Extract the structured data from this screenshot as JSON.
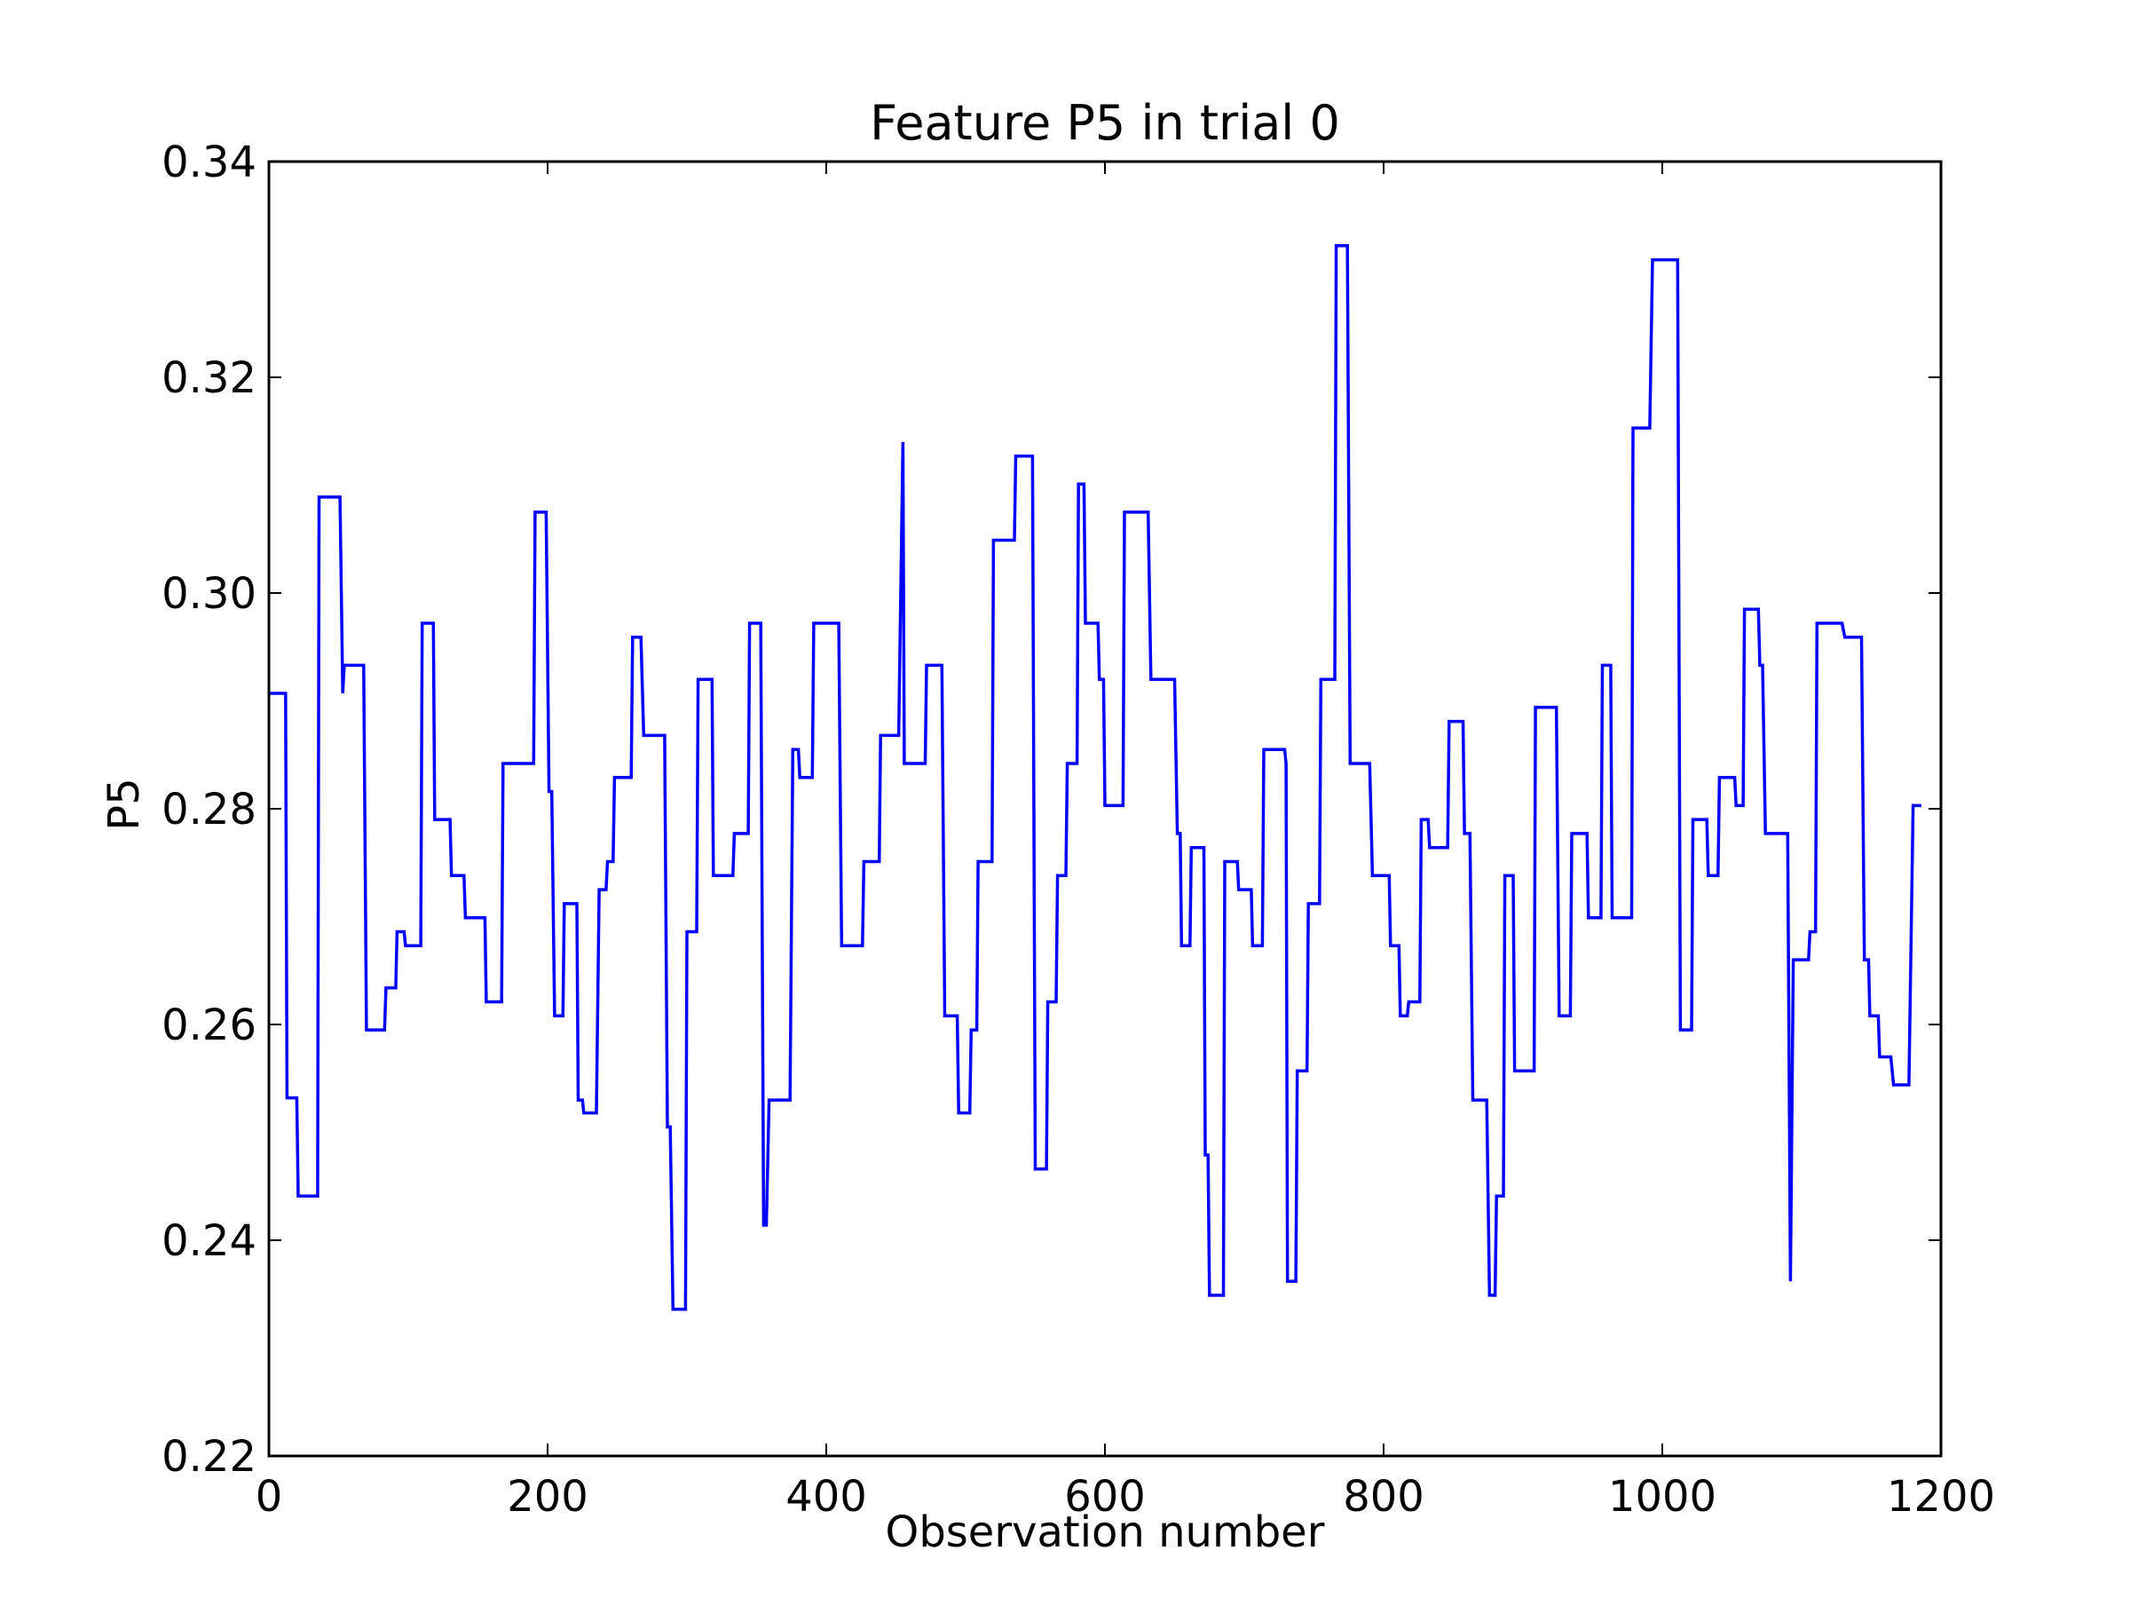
{
  "chart_data": {
    "type": "line",
    "title": "Feature P5 in trial 0",
    "xlabel": "Observation number",
    "ylabel": "P5",
    "xlim": [
      0,
      1200
    ],
    "ylim": [
      0.22,
      0.34
    ],
    "xticks": [
      0,
      200,
      400,
      600,
      800,
      1000,
      1200
    ],
    "xtick_labels": [
      "0",
      "200",
      "400",
      "600",
      "800",
      "1000",
      "1200"
    ],
    "yticks": [
      0.22,
      0.24,
      0.26,
      0.28,
      0.3,
      0.32,
      0.34
    ],
    "ytick_labels": [
      "0.22",
      "0.24",
      "0.26",
      "0.28",
      "0.30",
      "0.32",
      "0.34"
    ],
    "grid": false,
    "line_color": "#0000ff",
    "series": [
      {
        "values_step": true,
        "points": [
          [
            0,
            0.2907
          ],
          [
            12,
            0.2907
          ],
          [
            13,
            0.2532
          ],
          [
            20,
            0.2532
          ],
          [
            21,
            0.2441
          ],
          [
            35,
            0.2441
          ],
          [
            36,
            0.3089
          ],
          [
            51,
            0.3089
          ],
          [
            53,
            0.2907
          ],
          [
            54,
            0.2933
          ],
          [
            68,
            0.2933
          ],
          [
            70,
            0.2595
          ],
          [
            83,
            0.2595
          ],
          [
            84,
            0.2634
          ],
          [
            91,
            0.2634
          ],
          [
            92,
            0.2686
          ],
          [
            97,
            0.2686
          ],
          [
            98,
            0.2673
          ],
          [
            109,
            0.2673
          ],
          [
            110,
            0.2972
          ],
          [
            118,
            0.2972
          ],
          [
            119,
            0.279
          ],
          [
            130,
            0.279
          ],
          [
            131,
            0.2738
          ],
          [
            140,
            0.2738
          ],
          [
            141,
            0.2699
          ],
          [
            155,
            0.2699
          ],
          [
            156,
            0.2621
          ],
          [
            167,
            0.2621
          ],
          [
            168,
            0.2842
          ],
          [
            190,
            0.2842
          ],
          [
            191,
            0.3075
          ],
          [
            199,
            0.3075
          ],
          [
            201,
            0.2816
          ],
          [
            203,
            0.2816
          ],
          [
            205,
            0.2608
          ],
          [
            211,
            0.2608
          ],
          [
            212,
            0.2712
          ],
          [
            221,
            0.2712
          ],
          [
            222,
            0.253
          ],
          [
            225,
            0.253
          ],
          [
            226,
            0.2518
          ],
          [
            235,
            0.2518
          ],
          [
            237,
            0.2725
          ],
          [
            242,
            0.2725
          ],
          [
            243,
            0.2751
          ],
          [
            247,
            0.2751
          ],
          [
            248,
            0.2829
          ],
          [
            260,
            0.2829
          ],
          [
            261,
            0.2959
          ],
          [
            267,
            0.2959
          ],
          [
            269,
            0.2868
          ],
          [
            284,
            0.2868
          ],
          [
            286,
            0.2505
          ],
          [
            288,
            0.2505
          ],
          [
            290,
            0.2336
          ],
          [
            299,
            0.2336
          ],
          [
            300,
            0.2686
          ],
          [
            307,
            0.2686
          ],
          [
            308,
            0.292
          ],
          [
            318,
            0.292
          ],
          [
            319,
            0.2738
          ],
          [
            333,
            0.2738
          ],
          [
            334,
            0.2777
          ],
          [
            344,
            0.2777
          ],
          [
            345,
            0.2972
          ],
          [
            353,
            0.2972
          ],
          [
            355,
            0.2414
          ],
          [
            357,
            0.2414
          ],
          [
            359,
            0.253
          ],
          [
            374,
            0.253
          ],
          [
            376,
            0.2855
          ],
          [
            380,
            0.2855
          ],
          [
            381,
            0.2829
          ],
          [
            390,
            0.2829
          ],
          [
            391,
            0.2972
          ],
          [
            409,
            0.2972
          ],
          [
            411,
            0.2673
          ],
          [
            426,
            0.2673
          ],
          [
            427,
            0.2751
          ],
          [
            438,
            0.2751
          ],
          [
            439,
            0.2868
          ],
          [
            452,
            0.2868
          ],
          [
            455,
            0.314
          ],
          [
            456,
            0.2842
          ],
          [
            460,
            0.2842
          ],
          [
            471,
            0.2842
          ],
          [
            472,
            0.2933
          ],
          [
            483,
            0.2933
          ],
          [
            485,
            0.2608
          ],
          [
            494,
            0.2608
          ],
          [
            495,
            0.2518
          ],
          [
            503,
            0.2518
          ],
          [
            504,
            0.2595
          ],
          [
            508,
            0.2595
          ],
          [
            509,
            0.2751
          ],
          [
            519,
            0.2751
          ],
          [
            520,
            0.3049
          ],
          [
            535,
            0.3049
          ],
          [
            536,
            0.3127
          ],
          [
            548,
            0.3127
          ],
          [
            550,
            0.2466
          ],
          [
            558,
            0.2466
          ],
          [
            559,
            0.2621
          ],
          [
            565,
            0.2621
          ],
          [
            566,
            0.2738
          ],
          [
            572,
            0.2738
          ],
          [
            573,
            0.2842
          ],
          [
            580,
            0.2842
          ],
          [
            581,
            0.3101
          ],
          [
            585,
            0.3101
          ],
          [
            586,
            0.2972
          ],
          [
            595,
            0.2972
          ],
          [
            596,
            0.292
          ],
          [
            599,
            0.292
          ],
          [
            600,
            0.2803
          ],
          [
            613,
            0.2803
          ],
          [
            614,
            0.3075
          ],
          [
            631,
            0.3075
          ],
          [
            633,
            0.292
          ],
          [
            650,
            0.292
          ],
          [
            652,
            0.2777
          ],
          [
            654,
            0.2777
          ],
          [
            655,
            0.2673
          ],
          [
            661,
            0.2673
          ],
          [
            662,
            0.2764
          ],
          [
            671,
            0.2764
          ],
          [
            672,
            0.2479
          ],
          [
            674,
            0.2479
          ],
          [
            675,
            0.2349
          ],
          [
            685,
            0.2349
          ],
          [
            686,
            0.2751
          ],
          [
            695,
            0.2751
          ],
          [
            696,
            0.2725
          ],
          [
            705,
            0.2725
          ],
          [
            706,
            0.2673
          ],
          [
            713,
            0.2673
          ],
          [
            714,
            0.2855
          ],
          [
            729,
            0.2855
          ],
          [
            730,
            0.2842
          ],
          [
            731,
            0.2362
          ],
          [
            737,
            0.2362
          ],
          [
            738,
            0.2557
          ],
          [
            745,
            0.2557
          ],
          [
            746,
            0.2712
          ],
          [
            754,
            0.2712
          ],
          [
            755,
            0.292
          ],
          [
            765,
            0.292
          ],
          [
            766,
            0.3322
          ],
          [
            774,
            0.3322
          ],
          [
            776,
            0.2842
          ],
          [
            790,
            0.2842
          ],
          [
            792,
            0.2738
          ],
          [
            804,
            0.2738
          ],
          [
            805,
            0.2673
          ],
          [
            811,
            0.2673
          ],
          [
            812,
            0.2608
          ],
          [
            817,
            0.2608
          ],
          [
            818,
            0.2621
          ],
          [
            826,
            0.2621
          ],
          [
            827,
            0.279
          ],
          [
            832,
            0.279
          ],
          [
            833,
            0.2764
          ],
          [
            846,
            0.2764
          ],
          [
            847,
            0.2881
          ],
          [
            857,
            0.2881
          ],
          [
            858,
            0.2777
          ],
          [
            862,
            0.2777
          ],
          [
            864,
            0.253
          ],
          [
            874,
            0.253
          ],
          [
            876,
            0.2349
          ],
          [
            880,
            0.2349
          ],
          [
            881,
            0.2441
          ],
          [
            886,
            0.2441
          ],
          [
            887,
            0.2738
          ],
          [
            893,
            0.2738
          ],
          [
            894,
            0.2557
          ],
          [
            908,
            0.2557
          ],
          [
            909,
            0.2894
          ],
          [
            924,
            0.2894
          ],
          [
            926,
            0.2608
          ],
          [
            934,
            0.2608
          ],
          [
            935,
            0.2777
          ],
          [
            946,
            0.2777
          ],
          [
            947,
            0.2699
          ],
          [
            956,
            0.2699
          ],
          [
            957,
            0.2933
          ],
          [
            963,
            0.2933
          ],
          [
            964,
            0.2699
          ],
          [
            978,
            0.2699
          ],
          [
            979,
            0.3153
          ],
          [
            991,
            0.3153
          ],
          [
            993,
            0.3309
          ],
          [
            1011,
            0.3309
          ],
          [
            1013,
            0.2595
          ],
          [
            1021,
            0.2595
          ],
          [
            1022,
            0.279
          ],
          [
            1032,
            0.279
          ],
          [
            1033,
            0.2738
          ],
          [
            1040,
            0.2738
          ],
          [
            1041,
            0.2829
          ],
          [
            1052,
            0.2829
          ],
          [
            1053,
            0.2803
          ],
          [
            1058,
            0.2803
          ],
          [
            1059,
            0.2985
          ],
          [
            1069,
            0.2985
          ],
          [
            1070,
            0.2933
          ],
          [
            1072,
            0.2933
          ],
          [
            1074,
            0.2777
          ],
          [
            1090,
            0.2777
          ],
          [
            1092,
            0.2362
          ],
          [
            1094,
            0.266
          ],
          [
            1105,
            0.266
          ],
          [
            1106,
            0.2686
          ],
          [
            1110,
            0.2686
          ],
          [
            1111,
            0.2972
          ],
          [
            1129,
            0.2972
          ],
          [
            1131,
            0.2959
          ],
          [
            1143,
            0.2959
          ],
          [
            1145,
            0.266
          ],
          [
            1148,
            0.266
          ],
          [
            1149,
            0.2608
          ],
          [
            1155,
            0.2608
          ],
          [
            1156,
            0.257
          ],
          [
            1164,
            0.257
          ],
          [
            1166,
            0.2544
          ],
          [
            1177,
            0.2544
          ],
          [
            1180,
            0.2803
          ],
          [
            1186,
            0.2803
          ]
        ]
      }
    ]
  }
}
